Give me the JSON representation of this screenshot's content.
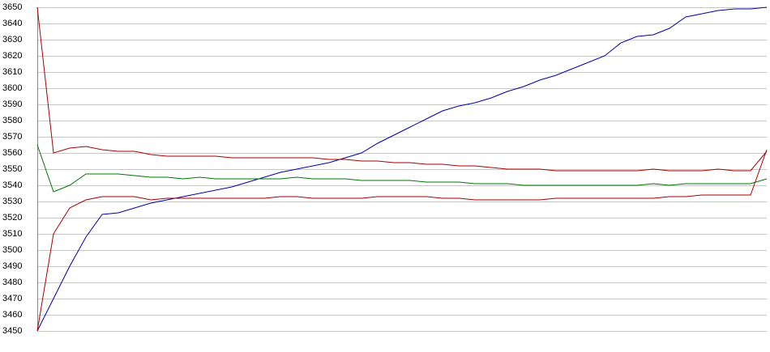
{
  "chart_data": {
    "type": "line",
    "x": [
      0,
      1,
      2,
      3,
      4,
      5,
      6,
      7,
      8,
      9,
      10,
      11,
      12,
      13,
      14,
      15,
      16,
      17,
      18,
      19,
      20,
      21,
      22,
      23,
      24,
      25,
      26,
      27,
      28,
      29,
      30,
      31,
      32,
      33,
      34,
      35,
      36,
      37,
      38,
      39,
      40,
      41,
      42,
      43,
      44,
      45
    ],
    "xlim": [
      0,
      45
    ],
    "ylim": [
      3450,
      3650
    ],
    "yticks": [
      3450,
      3460,
      3470,
      3480,
      3490,
      3500,
      3510,
      3520,
      3530,
      3540,
      3550,
      3560,
      3570,
      3580,
      3590,
      3600,
      3610,
      3620,
      3630,
      3640,
      3650
    ],
    "grid": true,
    "series": [
      {
        "color": "#0000aa",
        "values": [
          3450,
          3470,
          3490,
          3508,
          3522,
          3523,
          3526,
          3529,
          3531,
          3533,
          3535,
          3537,
          3539,
          3542,
          3545,
          3548,
          3550,
          3552,
          3554,
          3557,
          3560,
          3566,
          3571,
          3576,
          3581,
          3586,
          3589,
          3591,
          3594,
          3598,
          3601,
          3605,
          3608,
          3612,
          3616,
          3620,
          3628,
          3632,
          3633,
          3637,
          3644,
          3646,
          3648,
          3649,
          3649,
          3650
        ]
      },
      {
        "color": "#aa0000",
        "values": [
          3650,
          3560,
          3563,
          3564,
          3562,
          3561,
          3561,
          3559,
          3558,
          3558,
          3558,
          3558,
          3557,
          3557,
          3557,
          3557,
          3557,
          3557,
          3556,
          3556,
          3555,
          3555,
          3554,
          3554,
          3553,
          3553,
          3552,
          3552,
          3551,
          3550,
          3550,
          3550,
          3549,
          3549,
          3549,
          3549,
          3549,
          3549,
          3550,
          3549,
          3549,
          3549,
          3550,
          3549,
          3549,
          3561
        ]
      },
      {
        "color": "#007700",
        "values": [
          3565,
          3536,
          3540,
          3547,
          3547,
          3547,
          3546,
          3545,
          3545,
          3544,
          3545,
          3544,
          3544,
          3544,
          3544,
          3544,
          3545,
          3544,
          3544,
          3544,
          3543,
          3543,
          3543,
          3543,
          3542,
          3542,
          3542,
          3541,
          3541,
          3541,
          3540,
          3540,
          3540,
          3540,
          3540,
          3540,
          3540,
          3540,
          3541,
          3540,
          3541,
          3541,
          3541,
          3541,
          3541,
          3544
        ]
      },
      {
        "color": "#aa0000",
        "values": [
          3450,
          3510,
          3526,
          3531,
          3533,
          3533,
          3533,
          3531,
          3532,
          3532,
          3532,
          3532,
          3532,
          3532,
          3532,
          3533,
          3533,
          3532,
          3532,
          3532,
          3532,
          3533,
          3533,
          3533,
          3533,
          3532,
          3532,
          3531,
          3531,
          3531,
          3531,
          3531,
          3532,
          3532,
          3532,
          3532,
          3532,
          3532,
          3532,
          3533,
          3533,
          3534,
          3534,
          3534,
          3534,
          3562
        ]
      }
    ]
  }
}
